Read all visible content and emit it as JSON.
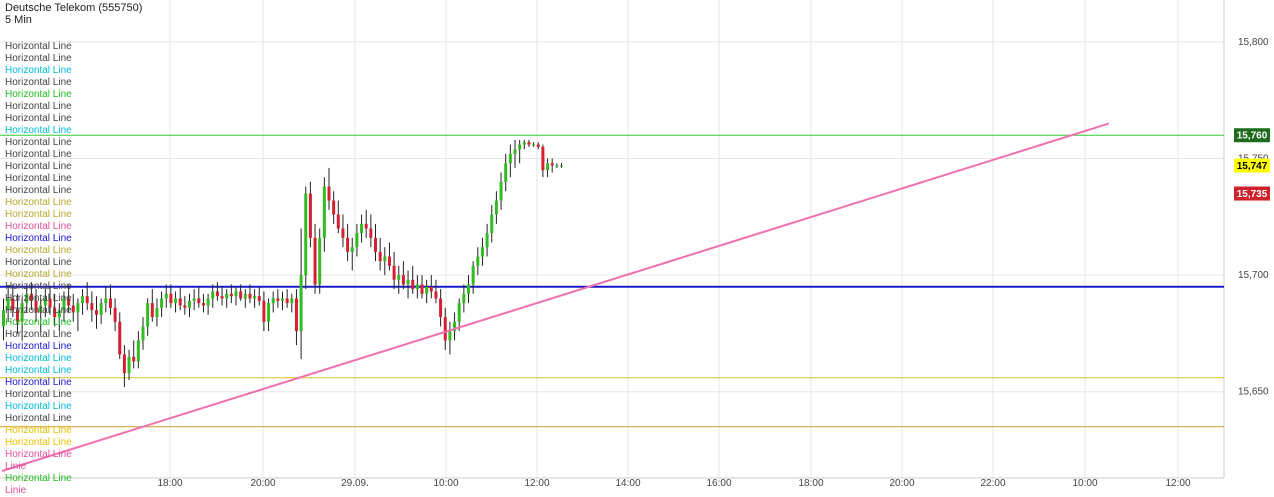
{
  "header": {
    "title": "Deutsche Telekom (555750)",
    "interval": "5 Min"
  },
  "legend": {
    "items": [
      {
        "label": "Horizontal Line",
        "color": "#444444"
      },
      {
        "label": "Horizontal Line",
        "color": "#444444"
      },
      {
        "label": "Horizontal Line",
        "color": "#00bcd4"
      },
      {
        "label": "Horizontal Line",
        "color": "#444444"
      },
      {
        "label": "Horizontal Line",
        "color": "#22bb22"
      },
      {
        "label": "Horizontal Line",
        "color": "#444444"
      },
      {
        "label": "Horizontal Line",
        "color": "#444444"
      },
      {
        "label": "Horizontal Line",
        "color": "#00bcd4"
      },
      {
        "label": "Horizontal Line",
        "color": "#444444"
      },
      {
        "label": "Horizontal Line",
        "color": "#444444"
      },
      {
        "label": "Horizontal Line",
        "color": "#444444"
      },
      {
        "label": "Horizontal Line",
        "color": "#444444"
      },
      {
        "label": "Horizontal Line",
        "color": "#444444"
      },
      {
        "label": "Horizontal Line",
        "color": "#b8a830"
      },
      {
        "label": "Horizontal Line",
        "color": "#b8a830"
      },
      {
        "label": "Horizontal Line",
        "color": "#e0509a"
      },
      {
        "label": "Horizontal Line",
        "color": "#1a1acc"
      },
      {
        "label": "Horizontal Line",
        "color": "#b8a830"
      },
      {
        "label": "Horizontal Line",
        "color": "#444444"
      },
      {
        "label": "Horizontal Line",
        "color": "#b8a830"
      },
      {
        "label": "Horizontal Line",
        "color": "#444444"
      },
      {
        "label": "Horizontal Line",
        "color": "#444444"
      },
      {
        "label": "Horizontal Line",
        "color": "#444444"
      },
      {
        "label": "Horizontal Line",
        "color": "#22bb22"
      },
      {
        "label": "Horizontal Line",
        "color": "#444444"
      },
      {
        "label": "Horizontal Line",
        "color": "#1a1acc"
      },
      {
        "label": "Horizontal Line",
        "color": "#00bcd4"
      },
      {
        "label": "Horizontal Line",
        "color": "#00bcd4"
      },
      {
        "label": "Horizontal Line",
        "color": "#1a1acc"
      },
      {
        "label": "Horizontal Line",
        "color": "#444444"
      },
      {
        "label": "Horizontal Line",
        "color": "#00bcd4"
      },
      {
        "label": "Horizontal Line",
        "color": "#444444"
      },
      {
        "label": "Horizontal Line",
        "color": "#e8c400"
      },
      {
        "label": "Horizontal Line",
        "color": "#e8c400"
      },
      {
        "label": "Horizontal Line",
        "color": "#e0509a"
      },
      {
        "label": "Linie",
        "color": "#e0509a"
      },
      {
        "label": "Horizontal Line",
        "color": "#22bb22"
      },
      {
        "label": "Linie",
        "color": "#e0509a"
      }
    ]
  },
  "price_badges": [
    {
      "value": "15,760",
      "bg": "#1e6b1e",
      "fg": "#ffffff",
      "price": 15.76
    },
    {
      "value": "15,747",
      "bg": "#ffff00",
      "fg": "#000000",
      "price": 15.747
    },
    {
      "value": "15,735",
      "bg": "#d0202a",
      "fg": "#ffffff",
      "price": 15.735
    }
  ],
  "chart_data": {
    "type": "candlestick",
    "title": "Deutsche Telekom (555750)",
    "interval": "5 Min",
    "y_ticks": [
      {
        "label": "15,800",
        "value": 15.8
      },
      {
        "label": "15,750",
        "value": 15.75
      },
      {
        "label": "15,700",
        "value": 15.7
      },
      {
        "label": "15,650",
        "value": 15.65
      }
    ],
    "ylim": [
      15.613,
      15.818
    ],
    "x_ticks": [
      "18:00",
      "20:00",
      "29.09.",
      "10:00",
      "12:00",
      "14:00",
      "16:00",
      "18:00",
      "20:00",
      "22:00",
      "10:00",
      "12:00"
    ],
    "horizontal_lines": [
      {
        "price": 15.76,
        "color": "#33cc33"
      },
      {
        "price": 15.695,
        "color": "#1a1acc"
      },
      {
        "price": 15.656,
        "color": "#d4c020"
      },
      {
        "price": 15.635,
        "color": "#c8a020"
      }
    ],
    "trend_line": {
      "color": "#f070b0",
      "start": {
        "slot": 0,
        "price": 15.616
      },
      "end": {
        "slot": 238,
        "price": 15.765
      }
    },
    "candles": [
      [
        15.678,
        15.69,
        15.672,
        15.685
      ],
      [
        15.685,
        15.695,
        15.68,
        15.69
      ],
      [
        15.69,
        15.696,
        15.682,
        15.685
      ],
      [
        15.685,
        15.692,
        15.675,
        15.68
      ],
      [
        15.68,
        15.69,
        15.672,
        15.688
      ],
      [
        15.688,
        15.695,
        15.684,
        15.692
      ],
      [
        15.692,
        15.697,
        15.685,
        15.689
      ],
      [
        15.689,
        15.694,
        15.68,
        15.684
      ],
      [
        15.684,
        15.69,
        15.676,
        15.687
      ],
      [
        15.687,
        15.694,
        15.682,
        15.69
      ],
      [
        15.69,
        15.695,
        15.683,
        15.686
      ],
      [
        15.686,
        15.692,
        15.678,
        15.682
      ],
      [
        15.682,
        15.688,
        15.676,
        15.685
      ],
      [
        15.685,
        15.693,
        15.68,
        15.69
      ],
      [
        15.69,
        15.696,
        15.684,
        15.687
      ],
      [
        15.687,
        15.692,
        15.68,
        15.684
      ],
      [
        15.684,
        15.69,
        15.676,
        15.688
      ],
      [
        15.688,
        15.694,
        15.683,
        15.691
      ],
      [
        15.691,
        15.697,
        15.685,
        15.688
      ],
      [
        15.688,
        15.693,
        15.68,
        15.685
      ],
      [
        15.685,
        15.691,
        15.677,
        15.683
      ],
      [
        15.683,
        15.69,
        15.679,
        15.688
      ],
      [
        15.688,
        15.695,
        15.684,
        15.69
      ],
      [
        15.69,
        15.696,
        15.683,
        15.686
      ],
      [
        15.686,
        15.69,
        15.676,
        15.68
      ],
      [
        15.68,
        15.684,
        15.664,
        15.666
      ],
      [
        15.666,
        15.67,
        15.652,
        15.658
      ],
      [
        15.658,
        15.668,
        15.655,
        15.665
      ],
      [
        15.665,
        15.672,
        15.66,
        15.663
      ],
      [
        15.663,
        15.676,
        15.66,
        15.672
      ],
      [
        15.672,
        15.682,
        15.668,
        15.678
      ],
      [
        15.678,
        15.69,
        15.674,
        15.688
      ],
      [
        15.688,
        15.694,
        15.68,
        15.682
      ],
      [
        15.682,
        15.69,
        15.678,
        15.686
      ],
      [
        15.686,
        15.693,
        15.682,
        15.69
      ],
      [
        15.69,
        15.696,
        15.686,
        15.692
      ],
      [
        15.692,
        15.696,
        15.686,
        15.688
      ],
      [
        15.688,
        15.693,
        15.684,
        15.69
      ],
      [
        15.69,
        15.695,
        15.685,
        15.687
      ],
      [
        15.687,
        15.691,
        15.683,
        15.686
      ],
      [
        15.686,
        15.692,
        15.682,
        15.689
      ],
      [
        15.689,
        15.694,
        15.685,
        15.69
      ],
      [
        15.69,
        15.695,
        15.686,
        15.688
      ],
      [
        15.688,
        15.692,
        15.684,
        15.687
      ],
      [
        15.687,
        15.692,
        15.683,
        15.69
      ],
      [
        15.69,
        15.696,
        15.686,
        15.693
      ],
      [
        15.693,
        15.697,
        15.689,
        15.691
      ],
      [
        15.691,
        15.695,
        15.687,
        15.69
      ],
      [
        15.69,
        15.694,
        15.686,
        15.692
      ],
      [
        15.692,
        15.696,
        15.688,
        15.691
      ],
      [
        15.691,
        15.695,
        15.687,
        15.693
      ],
      [
        15.693,
        15.696,
        15.689,
        15.69
      ],
      [
        15.69,
        15.694,
        15.686,
        15.692
      ],
      [
        15.692,
        15.696,
        15.688,
        15.69
      ],
      [
        15.69,
        15.694,
        15.686,
        15.691
      ],
      [
        15.691,
        15.695,
        15.687,
        15.689
      ],
      [
        15.689,
        15.693,
        15.676,
        15.68
      ],
      [
        15.68,
        15.69,
        15.676,
        15.688
      ],
      [
        15.688,
        15.693,
        15.684,
        15.69
      ],
      [
        15.69,
        15.694,
        15.686,
        15.689
      ],
      [
        15.689,
        15.693,
        15.685,
        15.69
      ],
      [
        15.69,
        15.694,
        15.686,
        15.688
      ],
      [
        15.688,
        15.692,
        15.684,
        15.69
      ],
      [
        15.69,
        15.694,
        15.67,
        15.676
      ],
      [
        15.676,
        15.72,
        15.664,
        15.7
      ],
      [
        15.7,
        15.738,
        15.694,
        15.735
      ],
      [
        15.735,
        15.74,
        15.712,
        15.716
      ],
      [
        15.716,
        15.722,
        15.692,
        15.696
      ],
      [
        15.696,
        15.72,
        15.692,
        15.716
      ],
      [
        15.716,
        15.742,
        15.71,
        15.738
      ],
      [
        15.738,
        15.746,
        15.728,
        15.732
      ],
      [
        15.732,
        15.736,
        15.722,
        15.726
      ],
      [
        15.726,
        15.732,
        15.718,
        15.72
      ],
      [
        15.72,
        15.726,
        15.712,
        15.716
      ],
      [
        15.716,
        15.722,
        15.706,
        15.71
      ],
      [
        15.71,
        15.716,
        15.702,
        15.712
      ],
      [
        15.712,
        15.722,
        15.708,
        15.718
      ],
      [
        15.718,
        15.726,
        15.714,
        15.722
      ],
      [
        15.722,
        15.728,
        15.716,
        15.72
      ],
      [
        15.72,
        15.726,
        15.712,
        15.716
      ],
      [
        15.716,
        15.722,
        15.706,
        15.71
      ],
      [
        15.71,
        15.716,
        15.702,
        15.706
      ],
      [
        15.706,
        15.712,
        15.7,
        15.708
      ],
      [
        15.708,
        15.714,
        15.702,
        15.704
      ],
      [
        15.704,
        15.71,
        15.694,
        15.698
      ],
      [
        15.698,
        15.704,
        15.692,
        15.7
      ],
      [
        15.7,
        15.706,
        15.694,
        15.696
      ],
      [
        15.696,
        15.702,
        15.69,
        15.698
      ],
      [
        15.698,
        15.704,
        15.692,
        15.694
      ],
      [
        15.694,
        15.7,
        15.69,
        15.696
      ],
      [
        15.696,
        15.7,
        15.69,
        15.692
      ],
      [
        15.692,
        15.698,
        15.688,
        15.695
      ],
      [
        15.695,
        15.7,
        15.69,
        15.693
      ],
      [
        15.693,
        15.698,
        15.688,
        15.69
      ],
      [
        15.69,
        15.694,
        15.678,
        15.682
      ],
      [
        15.682,
        15.686,
        15.668,
        15.672
      ],
      [
        15.672,
        15.68,
        15.666,
        15.676
      ],
      [
        15.676,
        15.684,
        15.672,
        15.68
      ],
      [
        15.68,
        15.69,
        15.676,
        15.688
      ],
      [
        15.688,
        15.696,
        15.684,
        15.692
      ],
      [
        15.692,
        15.7,
        15.688,
        15.696
      ],
      [
        15.696,
        15.706,
        15.692,
        15.704
      ],
      [
        15.704,
        15.712,
        15.7,
        15.708
      ],
      [
        15.708,
        15.716,
        15.704,
        15.712
      ],
      [
        15.712,
        15.722,
        15.708,
        15.718
      ],
      [
        15.718,
        15.73,
        15.714,
        15.726
      ],
      [
        15.726,
        15.736,
        15.722,
        15.732
      ],
      [
        15.732,
        15.744,
        15.728,
        15.74
      ],
      [
        15.74,
        15.752,
        15.736,
        15.748
      ],
      [
        15.748,
        15.756,
        15.742,
        15.752
      ],
      [
        15.752,
        15.758,
        15.746,
        15.754
      ],
      [
        15.754,
        15.758,
        15.748,
        15.756
      ],
      [
        15.756,
        15.758,
        15.754,
        15.757
      ],
      [
        15.757,
        15.758,
        15.755,
        15.756
      ],
      [
        15.756,
        15.757,
        15.755,
        15.756
      ],
      [
        15.756,
        15.757,
        15.754,
        15.755
      ],
      [
        15.755,
        15.756,
        15.742,
        15.745
      ],
      [
        15.745,
        15.75,
        15.742,
        15.748
      ],
      [
        15.748,
        15.75,
        15.744,
        15.747
      ],
      [
        15.747,
        15.748,
        15.746,
        15.747
      ],
      [
        15.747,
        15.748,
        15.746,
        15.747
      ]
    ]
  }
}
